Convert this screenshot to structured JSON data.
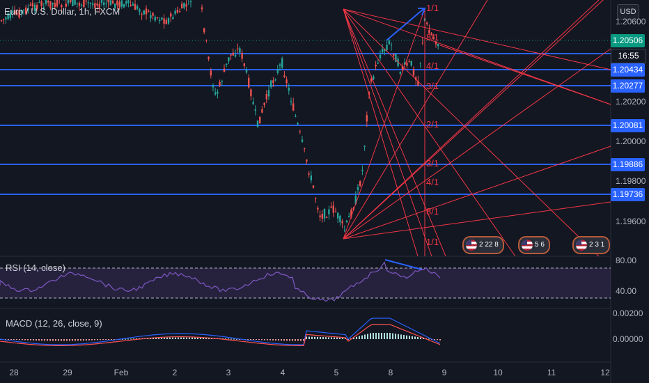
{
  "header": {
    "symbol_title": "Euro / U.S. Dollar, 1h, FXCM",
    "currency_button": "USD"
  },
  "colors": {
    "up": "#26a69a",
    "down": "#ef5350",
    "hline": "#2962ff",
    "fan": "#f23645",
    "rsi": "#7e57c2",
    "macd": "#2962ff",
    "signal": "#ff5252"
  },
  "price_axis": {
    "ticks": [
      "1.20600",
      "1.20200",
      "1.20000",
      "1.19800",
      "1.19600"
    ]
  },
  "price_boxes": [
    {
      "label": "1.20506",
      "style": "teal"
    },
    {
      "label": "16:55",
      "style": "dark"
    },
    {
      "label": "1.20434",
      "style": "blue"
    },
    {
      "label": "1.20277",
      "style": "blue"
    },
    {
      "label": "1.20081",
      "style": "blue"
    },
    {
      "label": "1.19886",
      "style": "blue"
    },
    {
      "label": "1.19736",
      "style": "blue"
    }
  ],
  "fan_labels": [
    "1/1",
    "8/1",
    "4/1",
    "3/1",
    "2/1",
    "3/1",
    "4/1",
    "8/1",
    "1/1"
  ],
  "events": [
    "2 22 8",
    "5 6",
    "2 3 1"
  ],
  "rsi": {
    "label": "RSI (14, close)",
    "ticks": [
      "80.00",
      "40.00"
    ]
  },
  "macd": {
    "label": "MACD (12, 26, close, 9)",
    "ticks": [
      "0.00200",
      "0.00000"
    ]
  },
  "time_axis": [
    "28",
    "29",
    "Feb",
    "2",
    "3",
    "4",
    "5",
    "8",
    "9",
    "10",
    "11",
    "12"
  ]
}
